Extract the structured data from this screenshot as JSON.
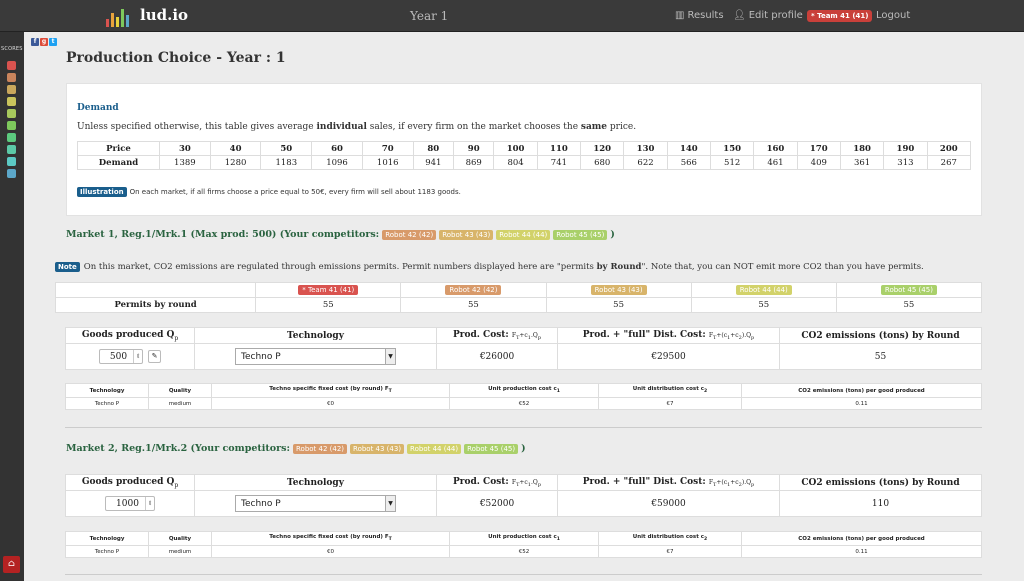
{
  "nav": {
    "logo_text": "lud.io",
    "year_title": "Year 1",
    "results_label": "Results",
    "edit_profile_label": "Edit profile",
    "team_badge": "* Team 41 (41)",
    "logout_label": "Logout"
  },
  "sidebar": {
    "scores_label": "SCORES",
    "score_colors": [
      "#d9534f",
      "#c9845c",
      "#c9a75c",
      "#c9c45c",
      "#a7c95c",
      "#7ec95c",
      "#5cc97e",
      "#5cc9a7",
      "#5cc9c4",
      "#5ca7c9"
    ]
  },
  "page": {
    "title": "Production Choice - Year : 1"
  },
  "demand": {
    "heading": "Demand",
    "text_pre": "Unless specified otherwise, this table gives average ",
    "text_bold1": "individual",
    "text_mid": " sales, if every firm on the market chooses the ",
    "text_bold2": "same",
    "text_post": " price.",
    "price_label": "Price",
    "demand_label": "Demand",
    "prices": [
      "30",
      "40",
      "50",
      "60",
      "70",
      "80",
      "90",
      "100",
      "110",
      "120",
      "130",
      "140",
      "150",
      "160",
      "170",
      "180",
      "190",
      "200"
    ],
    "demands": [
      "1389",
      "1280",
      "1183",
      "1096",
      "1016",
      "941",
      "869",
      "804",
      "741",
      "680",
      "622",
      "566",
      "512",
      "461",
      "409",
      "361",
      "313",
      "267"
    ],
    "illustration_tag": "Illustration",
    "illustration_text": "On each market, if all firms choose a price equal to 50€, every firm will sell about 1183 goods."
  },
  "market1": {
    "title": "Market 1, Reg.1/Mrk.1 (Max prod: 500) (Your competitors:",
    "competitors": [
      "Robot 42 (42)",
      "Robot 43 (43)",
      "Robot 44 (44)",
      "Robot 45 (45)"
    ],
    "close": ")",
    "note_tag": "Note",
    "note_pre": "On this market, CO2 emissions are regulated through emissions permits. Permit numbers displayed here are \"permits ",
    "note_bold": "by Round",
    "note_post": "\". Note that, you can NOT emit more CO2 than you have permits.",
    "permit_teams": [
      "* Team 41 (41)",
      "Robot 42 (42)",
      "Robot 43 (43)",
      "Robot 44 (44)",
      "Robot 45 (45)"
    ],
    "permits_label": "Permits by round",
    "permits": [
      "55",
      "55",
      "55",
      "55",
      "55"
    ],
    "goods_value": "500",
    "technology_value": "Techno P",
    "prod_cost": "€26000",
    "dist_cost": "€29500",
    "co2": "55",
    "tech_name": "Techno P",
    "quality": "medium",
    "fixed_cost": "€0",
    "unit_prod": "€52",
    "unit_dist": "€7",
    "co2_per_good": "0.11"
  },
  "market2": {
    "title": "Market 2, Reg.1/Mrk.2 (Your competitors:",
    "competitors": [
      "Robot 42 (42)",
      "Robot 43 (43)",
      "Robot 44 (44)",
      "Robot 45 (45)"
    ],
    "close": ")",
    "goods_value": "1000",
    "technology_value": "Techno P",
    "prod_cost": "€52000",
    "dist_cost": "€59000",
    "co2": "110",
    "tech_name": "Techno P",
    "quality": "medium",
    "fixed_cost": "€0",
    "unit_prod": "€52",
    "unit_dist": "€7",
    "co2_per_good": "0.11"
  },
  "prod_headers": {
    "goods": "Goods produced Q",
    "goods_sub": "p",
    "technology": "Technology",
    "prod_cost": "Prod. Cost: ",
    "prod_cost_sub": "F",
    "prod_cost_sub2": "T",
    "prod_cost_sub3": "+c",
    "prod_cost_sub4": "1",
    "prod_cost_sub5": ".Q",
    "prod_cost_sub6": "p",
    "dist_cost": "Prod. + \"full\" Dist. Cost: ",
    "dist_cost_sub": "F",
    "dist_cost_sub2": "T",
    "dist_cost_sub3": "+(c",
    "dist_cost_sub4": "1",
    "dist_cost_sub5": "+c",
    "dist_cost_sub6": "2",
    "dist_cost_sub7": ").Q",
    "dist_cost_sub8": "p",
    "co2": "CO2 emissions (tons) by Round"
  },
  "tech_headers": {
    "technology": "Technology",
    "quality": "Quality",
    "fixed": "Techno specific fixed cost (by round) F",
    "fixed_sub": "T",
    "unit_prod": "Unit production cost c",
    "unit_prod_sub": "1",
    "unit_dist": "Unit distribution cost c",
    "unit_dist_sub": "2",
    "co2": "CO2 emissions (tons) per good produced"
  },
  "colors": {
    "robot42": "#d89a6a",
    "robot43": "#d8b46a",
    "robot44": "#d2d26a",
    "robot45": "#a9d06a",
    "team41": "#d9534f"
  }
}
